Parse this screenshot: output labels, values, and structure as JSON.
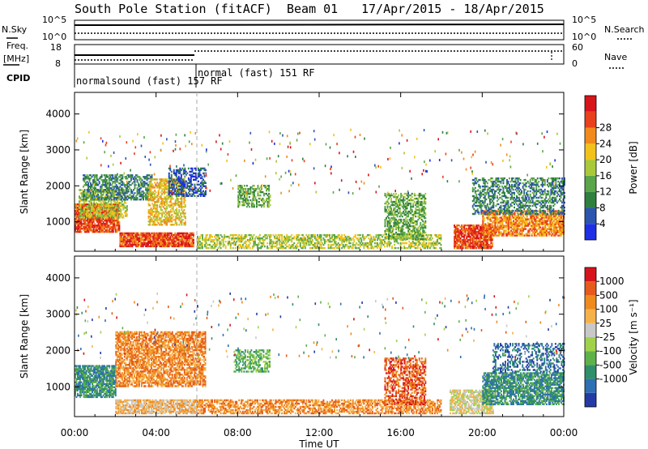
{
  "header": {
    "station": "South Pole Station (fitACF)",
    "beam": "Beam 01",
    "dates": "17/Apr/2015 - 18/Apr/2015"
  },
  "top_panels": {
    "nsky_label": "N.Sky",
    "nsky_ticks": [
      "10^5",
      "10^0"
    ],
    "nsearch_label": "N.Search",
    "nsearch_ticks": [
      "10^5",
      "10^0"
    ],
    "freq_label_line1": "Freq.",
    "freq_label_line2": "[MHz]",
    "freq_ticks": [
      "18",
      "8"
    ],
    "nave_label": "Nave",
    "nave_ticks": [
      "60",
      "0"
    ],
    "cpid_label": "CPID",
    "cpid_segments": [
      {
        "text": "normalsound (fast) 157 RF",
        "start_hour": 0,
        "end_hour": 6
      },
      {
        "text": "normal (fast) 151 RF",
        "start_hour": 6,
        "end_hour": 24
      }
    ]
  },
  "x_axis": {
    "label": "Time UT",
    "ticks": [
      "00:00",
      "04:00",
      "08:00",
      "12:00",
      "16:00",
      "20:00",
      "00:00"
    ],
    "tick_hours": [
      0,
      4,
      8,
      12,
      16,
      20,
      24
    ],
    "range_hours": [
      0,
      24
    ]
  },
  "chart_data": [
    {
      "type": "heatmap",
      "name": "power-panel",
      "ylabel": "Slant Range [km]",
      "y_ticks": [
        1000,
        2000,
        3000,
        4000
      ],
      "ylim": [
        180,
        4600
      ],
      "xlim": [
        0,
        24
      ],
      "colorbar": {
        "label": "Power [dB]",
        "ticks": [
          4,
          8,
          12,
          16,
          20,
          24,
          28
        ],
        "colors": [
          "#1e2fe6",
          "#2c55b0",
          "#2f7f3e",
          "#5aa54a",
          "#a9c83a",
          "#f2c21a",
          "#f18a1b",
          "#e9401d",
          "#d8141b"
        ]
      },
      "blobs": [
        {
          "t0": 0.0,
          "t1": 2.2,
          "r0": 700,
          "r1": 1500,
          "level": 7,
          "density": 0.85
        },
        {
          "t0": 0.2,
          "t1": 2.6,
          "r0": 1100,
          "r1": 1900,
          "level": 4,
          "density": 0.6
        },
        {
          "t0": 0.4,
          "t1": 3.8,
          "r0": 1600,
          "r1": 2300,
          "level": 2,
          "density": 0.55
        },
        {
          "t0": 2.2,
          "t1": 5.8,
          "r0": 300,
          "r1": 700,
          "level": 7,
          "density": 0.9
        },
        {
          "t0": 3.6,
          "t1": 5.4,
          "r0": 900,
          "r1": 2200,
          "level": 5,
          "density": 0.6
        },
        {
          "t0": 4.6,
          "t1": 6.4,
          "r0": 1700,
          "r1": 2500,
          "level": 1,
          "density": 0.5
        },
        {
          "t0": 6.0,
          "t1": 18.0,
          "r0": 250,
          "r1": 650,
          "level": 4,
          "density": 0.55
        },
        {
          "t0": 8.0,
          "t1": 9.6,
          "r0": 1400,
          "r1": 2000,
          "level": 3,
          "density": 0.5
        },
        {
          "t0": 15.2,
          "t1": 17.2,
          "r0": 500,
          "r1": 1800,
          "level": 3,
          "density": 0.55
        },
        {
          "t0": 18.6,
          "t1": 20.5,
          "r0": 250,
          "r1": 900,
          "level": 7,
          "density": 0.85
        },
        {
          "t0": 20.0,
          "t1": 24.0,
          "r0": 600,
          "r1": 1300,
          "level": 6,
          "density": 0.75
        },
        {
          "t0": 19.5,
          "t1": 24.0,
          "r0": 1200,
          "r1": 2200,
          "level": 2,
          "density": 0.45
        }
      ]
    },
    {
      "type": "heatmap",
      "name": "velocity-panel",
      "ylabel": "Slant Range [km]",
      "y_ticks": [
        1000,
        2000,
        3000,
        4000
      ],
      "ylim": [
        180,
        4600
      ],
      "xlim": [
        0,
        24
      ],
      "colorbar": {
        "label": "Velocity [m s⁻¹]",
        "ticks": [
          "1000",
          "500",
          "100",
          "25",
          "-25",
          "-100",
          "-500",
          "-1000"
        ],
        "colors": [
          "#243ba6",
          "#2f6fb3",
          "#2f8f6a",
          "#5fb14a",
          "#9fd24a",
          "#c8c8c8",
          "#f6b24a",
          "#ef8a1f",
          "#e65a1b",
          "#d7141b"
        ]
      },
      "blobs": [
        {
          "t0": 0.0,
          "t1": 2.0,
          "r0": 700,
          "r1": 1600,
          "level": 2,
          "density": 0.8
        },
        {
          "t0": 2.0,
          "t1": 6.4,
          "r0": 1000,
          "r1": 2500,
          "level": 7,
          "density": 0.7
        },
        {
          "t0": 2.0,
          "t1": 6.0,
          "r0": 250,
          "r1": 650,
          "level": 6,
          "density": 0.8
        },
        {
          "t0": 6.0,
          "t1": 18.0,
          "r0": 250,
          "r1": 650,
          "level": 7,
          "density": 0.6
        },
        {
          "t0": 7.8,
          "t1": 9.6,
          "r0": 1400,
          "r1": 2000,
          "level": 3,
          "density": 0.5
        },
        {
          "t0": 15.2,
          "t1": 17.2,
          "r0": 500,
          "r1": 1800,
          "level": 8,
          "density": 0.55
        },
        {
          "t0": 18.4,
          "t1": 20.5,
          "r0": 250,
          "r1": 900,
          "level": 5,
          "density": 0.7
        },
        {
          "t0": 20.0,
          "t1": 24.0,
          "r0": 500,
          "r1": 1400,
          "level": 2,
          "density": 0.75
        },
        {
          "t0": 20.5,
          "t1": 24.0,
          "r0": 1400,
          "r1": 2200,
          "level": 1,
          "density": 0.4
        }
      ]
    }
  ]
}
